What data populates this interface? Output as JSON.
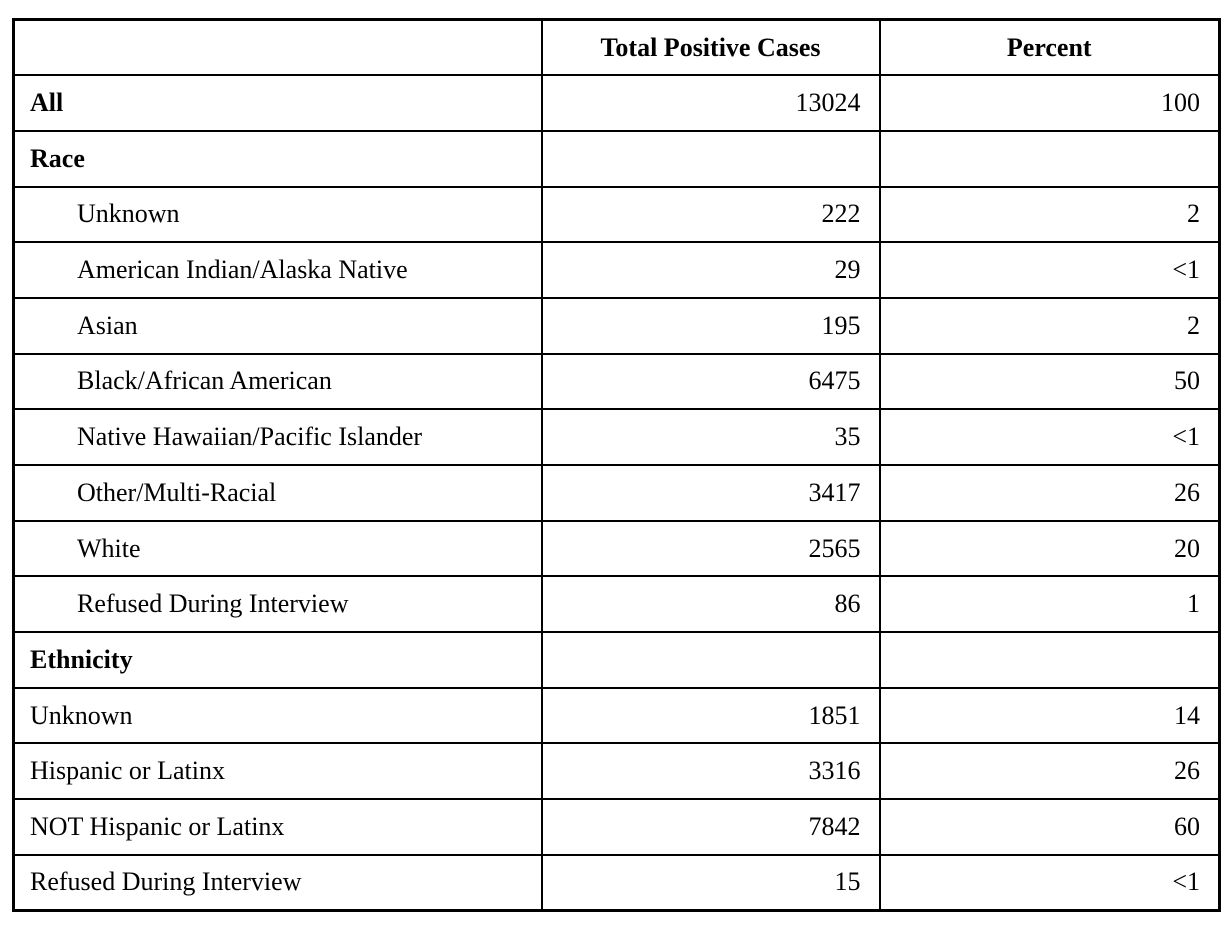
{
  "table": {
    "headers": {
      "label": "",
      "cases": "Total Positive Cases",
      "percent": "Percent"
    },
    "rows": [
      {
        "label": "All",
        "bold": true,
        "indent": false,
        "cases": "13024",
        "percent": "100"
      },
      {
        "label": "Race",
        "bold": true,
        "indent": false,
        "cases": "",
        "percent": ""
      },
      {
        "label": "Unknown",
        "bold": false,
        "indent": true,
        "cases": "222",
        "percent": "2"
      },
      {
        "label": "American Indian/Alaska Native",
        "bold": false,
        "indent": true,
        "cases": "29",
        "percent": "<1"
      },
      {
        "label": "Asian",
        "bold": false,
        "indent": true,
        "cases": "195",
        "percent": "2"
      },
      {
        "label": "Black/African American",
        "bold": false,
        "indent": true,
        "cases": "6475",
        "percent": "50"
      },
      {
        "label": "Native Hawaiian/Pacific Islander",
        "bold": false,
        "indent": true,
        "cases": "35",
        "percent": "<1"
      },
      {
        "label": "Other/Multi-Racial",
        "bold": false,
        "indent": true,
        "cases": "3417",
        "percent": "26"
      },
      {
        "label": "White",
        "bold": false,
        "indent": true,
        "cases": "2565",
        "percent": "20"
      },
      {
        "label": "Refused During Interview",
        "bold": false,
        "indent": true,
        "cases": "86",
        "percent": "1"
      },
      {
        "label": "Ethnicity",
        "bold": true,
        "indent": false,
        "cases": "",
        "percent": ""
      },
      {
        "label": "Unknown",
        "bold": false,
        "indent": false,
        "cases": "1851",
        "percent": "14"
      },
      {
        "label": "Hispanic or Latinx",
        "bold": false,
        "indent": false,
        "cases": "3316",
        "percent": "26"
      },
      {
        "label": "NOT Hispanic or Latinx",
        "bold": false,
        "indent": false,
        "cases": "7842",
        "percent": "60"
      },
      {
        "label": "Refused During Interview",
        "bold": false,
        "indent": false,
        "cases": "15",
        "percent": "<1"
      }
    ]
  },
  "chart_data": {
    "type": "table",
    "title": "",
    "columns": [
      "",
      "Total Positive Cases",
      "Percent"
    ],
    "rows": [
      [
        "All",
        "13024",
        "100"
      ],
      [
        "Race",
        "",
        ""
      ],
      [
        "Unknown",
        "222",
        "2"
      ],
      [
        "American Indian/Alaska Native",
        "29",
        "<1"
      ],
      [
        "Asian",
        "195",
        "2"
      ],
      [
        "Black/African American",
        "6475",
        "50"
      ],
      [
        "Native Hawaiian/Pacific Islander",
        "35",
        "<1"
      ],
      [
        "Other/Multi-Racial",
        "3417",
        "26"
      ],
      [
        "White",
        "2565",
        "20"
      ],
      [
        "Refused During Interview",
        "86",
        "1"
      ],
      [
        "Ethnicity",
        "",
        ""
      ],
      [
        "Unknown",
        "1851",
        "14"
      ],
      [
        "Hispanic or Latinx",
        "3316",
        "26"
      ],
      [
        "NOT Hispanic or Latinx",
        "7842",
        "60"
      ],
      [
        "Refused During Interview",
        "15",
        "<1"
      ]
    ]
  }
}
